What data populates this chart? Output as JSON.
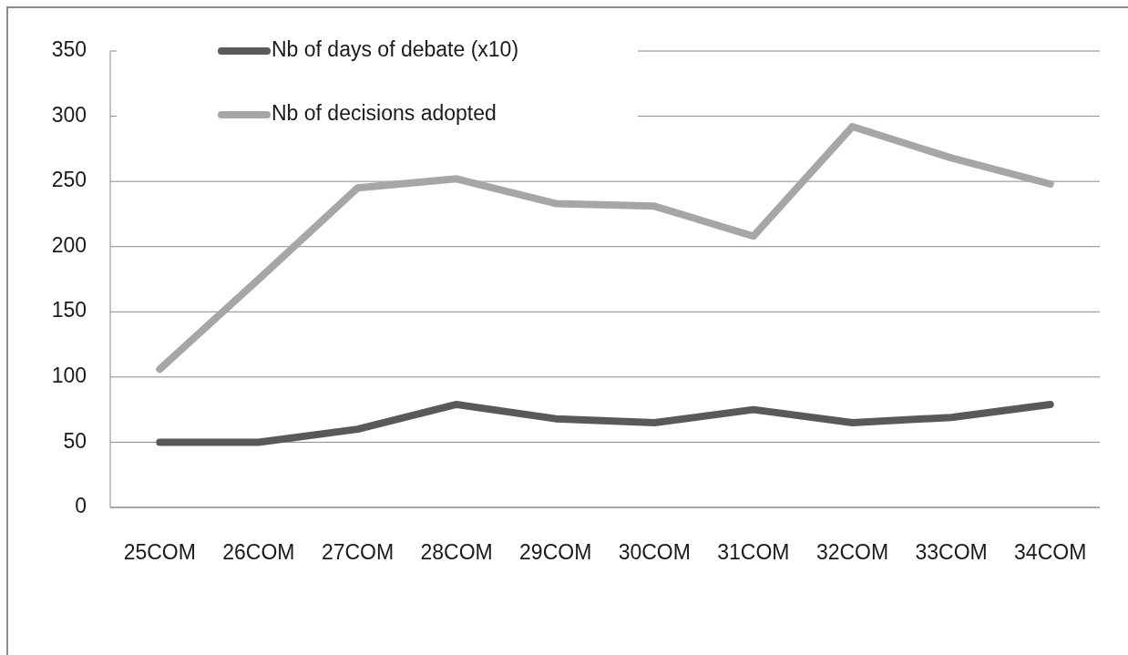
{
  "chart_data": {
    "type": "line",
    "categories": [
      "25COM",
      "26COM",
      "27COM",
      "28COM",
      "29COM",
      "30COM",
      "31COM",
      "32COM",
      "33COM",
      "34COM"
    ],
    "series": [
      {
        "name": "Nb of days of debate (x10)",
        "color": "#595959",
        "values": [
          50,
          50,
          60,
          79,
          68,
          65,
          75,
          65,
          69,
          79
        ]
      },
      {
        "name": "Nb of decisions adopted",
        "color": "#a6a6a6",
        "values": [
          106,
          175,
          245,
          252,
          233,
          231,
          208,
          292,
          268,
          248
        ]
      }
    ],
    "ylim": [
      0,
      350
    ],
    "yticks": [
      0,
      50,
      100,
      150,
      200,
      250,
      300,
      350
    ],
    "grid": "y",
    "legend": "top left"
  }
}
